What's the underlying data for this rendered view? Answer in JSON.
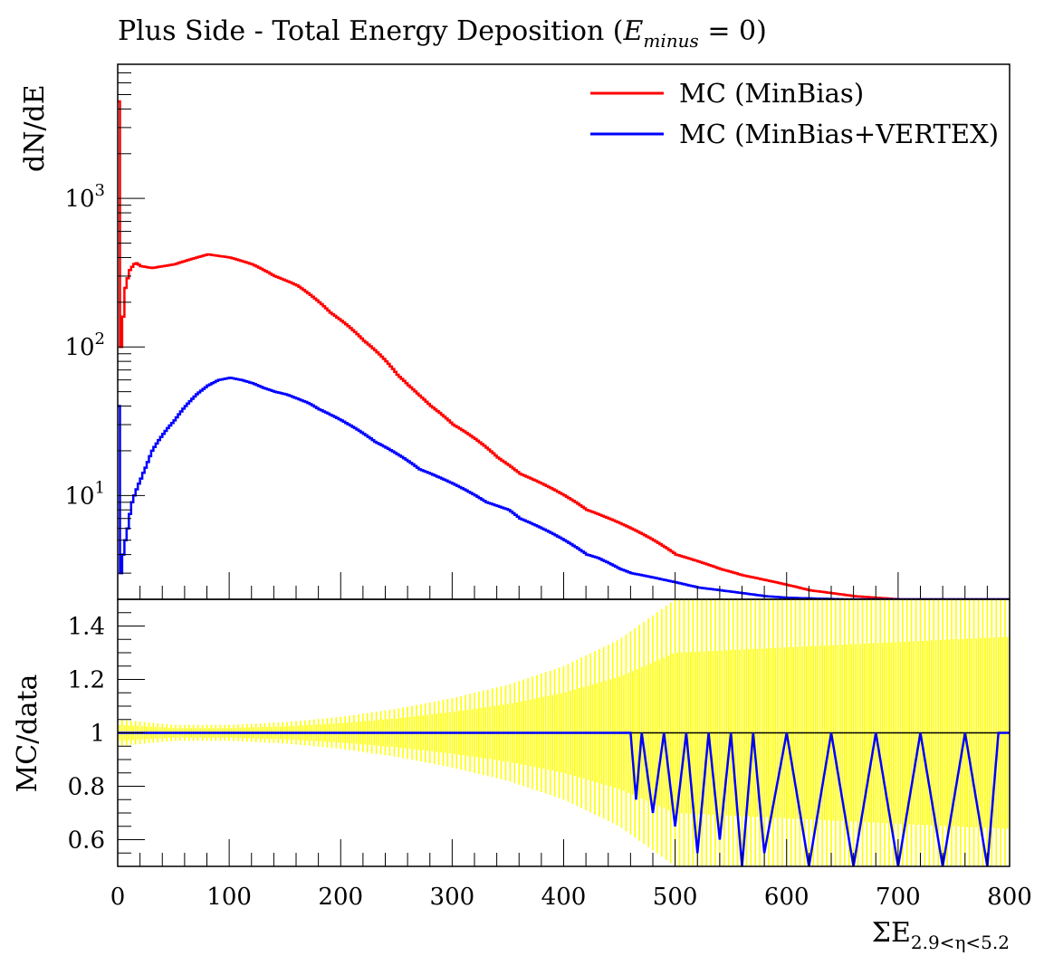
{
  "chart_data": {
    "type": "line",
    "title": "Plus Side - Total Energy Deposition (E_minus = 0)",
    "title_main": "Plus Side - Total Energy Deposition (",
    "title_var": "E",
    "title_sub": "minus",
    "title_tail": " = 0)",
    "xlabel": "ΣE",
    "xlabel_sub": "2.9<η<5.2",
    "xlim": [
      0,
      800
    ],
    "x_ticks": [
      "0",
      "100",
      "200",
      "300",
      "400",
      "500",
      "600",
      "700",
      "800"
    ],
    "top_panel": {
      "ylabel": "dN/dE",
      "yscale": "log",
      "ylim": [
        2,
        8000
      ],
      "y_ticks": [
        {
          "value": 1000,
          "base": "10",
          "exp": "3"
        },
        {
          "value": 100,
          "base": "10",
          "exp": "2"
        },
        {
          "value": 10,
          "base": "10",
          "exp": "1"
        }
      ],
      "legend_position": "top-right",
      "series": [
        {
          "name": "MC (MinBias)",
          "color": "#ff0000",
          "points": [
            [
              0,
              4500
            ],
            [
              1,
              300
            ],
            [
              2,
              100
            ],
            [
              4,
              160
            ],
            [
              6,
              250
            ],
            [
              10,
              330
            ],
            [
              15,
              370
            ],
            [
              20,
              350
            ],
            [
              30,
              340
            ],
            [
              40,
              350
            ],
            [
              50,
              360
            ],
            [
              60,
              380
            ],
            [
              70,
              400
            ],
            [
              80,
              420
            ],
            [
              90,
              410
            ],
            [
              100,
              400
            ],
            [
              110,
              380
            ],
            [
              120,
              360
            ],
            [
              130,
              330
            ],
            [
              140,
              300
            ],
            [
              150,
              280
            ],
            [
              160,
              260
            ],
            [
              170,
              230
            ],
            [
              180,
              200
            ],
            [
              190,
              170
            ],
            [
              200,
              150
            ],
            [
              210,
              130
            ],
            [
              220,
              110
            ],
            [
              230,
              95
            ],
            [
              240,
              80
            ],
            [
              250,
              65
            ],
            [
              260,
              55
            ],
            [
              270,
              47
            ],
            [
              280,
              40
            ],
            [
              290,
              35
            ],
            [
              300,
              30
            ],
            [
              310,
              27
            ],
            [
              320,
              24
            ],
            [
              330,
              21
            ],
            [
              340,
              18
            ],
            [
              350,
              16
            ],
            [
              360,
              14
            ],
            [
              370,
              13
            ],
            [
              380,
              12
            ],
            [
              390,
              11
            ],
            [
              400,
              10
            ],
            [
              410,
              9
            ],
            [
              420,
              8
            ],
            [
              430,
              7.5
            ],
            [
              440,
              7
            ],
            [
              450,
              6.5
            ],
            [
              460,
              6
            ],
            [
              470,
              5.5
            ],
            [
              480,
              5
            ],
            [
              490,
              4.5
            ],
            [
              500,
              4
            ],
            [
              520,
              3.6
            ],
            [
              540,
              3.2
            ],
            [
              560,
              2.9
            ],
            [
              580,
              2.7
            ],
            [
              600,
              2.5
            ],
            [
              620,
              2.3
            ],
            [
              640,
              2.2
            ],
            [
              660,
              2.1
            ],
            [
              680,
              2.05
            ],
            [
              700,
              2.0
            ],
            [
              740,
              2.0
            ]
          ]
        },
        {
          "name": "MC (MinBias+VERTEX)",
          "color": "#0000ff",
          "points": [
            [
              0,
              40
            ],
            [
              2,
              3
            ],
            [
              4,
              4
            ],
            [
              8,
              6
            ],
            [
              12,
              9
            ],
            [
              16,
              11
            ],
            [
              20,
              13
            ],
            [
              25,
              16
            ],
            [
              30,
              20
            ],
            [
              40,
              26
            ],
            [
              50,
              32
            ],
            [
              60,
              40
            ],
            [
              70,
              48
            ],
            [
              80,
              55
            ],
            [
              90,
              60
            ],
            [
              100,
              62
            ],
            [
              110,
              60
            ],
            [
              120,
              57
            ],
            [
              130,
              53
            ],
            [
              140,
              50
            ],
            [
              150,
              48
            ],
            [
              160,
              45
            ],
            [
              170,
              42
            ],
            [
              180,
              38
            ],
            [
              190,
              35
            ],
            [
              200,
              32
            ],
            [
              210,
              29
            ],
            [
              220,
              26
            ],
            [
              230,
              23
            ],
            [
              240,
              21
            ],
            [
              250,
              19
            ],
            [
              260,
              17
            ],
            [
              270,
              15
            ],
            [
              280,
              14
            ],
            [
              290,
              13
            ],
            [
              300,
              12
            ],
            [
              310,
              11
            ],
            [
              320,
              10
            ],
            [
              330,
              9
            ],
            [
              340,
              8.5
            ],
            [
              350,
              8
            ],
            [
              360,
              7
            ],
            [
              370,
              6.5
            ],
            [
              380,
              6
            ],
            [
              390,
              5.5
            ],
            [
              400,
              5
            ],
            [
              410,
              4.5
            ],
            [
              420,
              4
            ],
            [
              430,
              3.8
            ],
            [
              440,
              3.5
            ],
            [
              450,
              3.2
            ],
            [
              460,
              3
            ],
            [
              480,
              2.8
            ],
            [
              500,
              2.6
            ],
            [
              520,
              2.4
            ],
            [
              540,
              2.3
            ],
            [
              560,
              2.2
            ],
            [
              580,
              2.1
            ],
            [
              600,
              2.05
            ],
            [
              650,
              2.0
            ],
            [
              700,
              2.0
            ],
            [
              760,
              2.0
            ],
            [
              790,
              2.0
            ]
          ]
        }
      ]
    },
    "bottom_panel": {
      "ylabel": "MC/data",
      "ylim": [
        0.5,
        1.5
      ],
      "y_ticks": [
        "0.6",
        "0.8",
        "1",
        "1.2",
        "1.4"
      ],
      "reference_line": 1.0,
      "uncertainty_band": {
        "color": "#ffff00",
        "half_width": [
          [
            0,
            0.05
          ],
          [
            50,
            0.03
          ],
          [
            100,
            0.03
          ],
          [
            150,
            0.04
          ],
          [
            200,
            0.06
          ],
          [
            250,
            0.09
          ],
          [
            300,
            0.13
          ],
          [
            350,
            0.18
          ],
          [
            400,
            0.25
          ],
          [
            450,
            0.35
          ],
          [
            500,
            0.5
          ],
          [
            800,
            0.6
          ]
        ]
      },
      "series": [
        {
          "name": "MC (MinBias+VERTEX)",
          "color": "#0000ff",
          "points": [
            [
              0,
              1.0
            ],
            [
              460,
              1.0
            ],
            [
              465,
              0.75
            ],
            [
              470,
              1.0
            ],
            [
              480,
              0.7
            ],
            [
              490,
              1.0
            ],
            [
              500,
              0.65
            ],
            [
              510,
              1.0
            ],
            [
              520,
              0.55
            ],
            [
              530,
              1.0
            ],
            [
              540,
              0.6
            ],
            [
              550,
              1.0
            ],
            [
              560,
              0.5
            ],
            [
              570,
              1.0
            ],
            [
              580,
              0.55
            ],
            [
              600,
              1.0
            ],
            [
              620,
              0.5
            ],
            [
              640,
              1.0
            ],
            [
              660,
              0.5
            ],
            [
              680,
              1.0
            ],
            [
              700,
              0.5
            ],
            [
              720,
              1.0
            ],
            [
              740,
              0.5
            ],
            [
              760,
              1.0
            ],
            [
              780,
              0.5
            ],
            [
              790,
              1.0
            ],
            [
              800,
              1.0
            ]
          ]
        }
      ]
    }
  }
}
